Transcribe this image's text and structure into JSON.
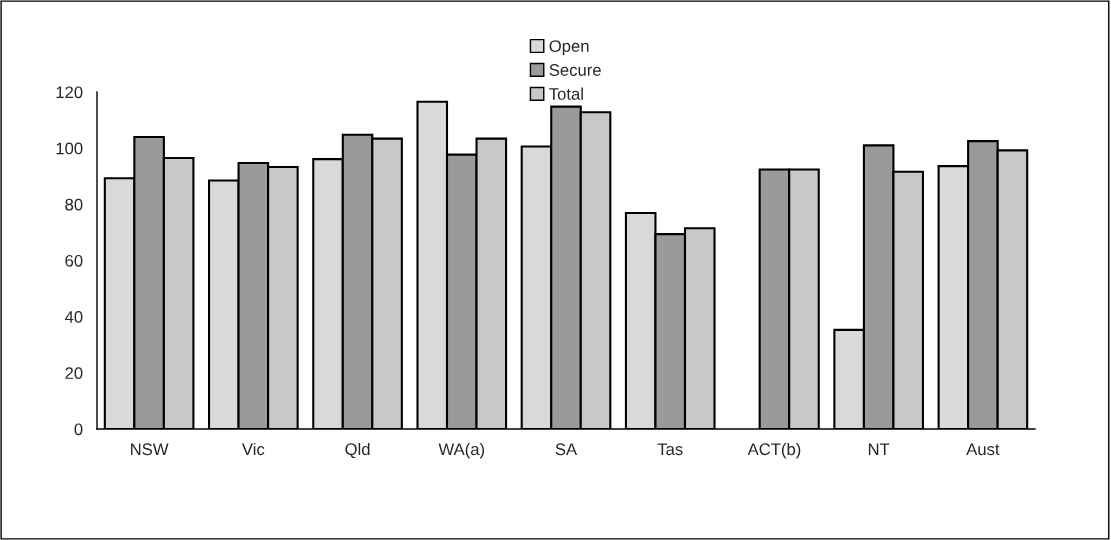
{
  "chart_data": {
    "type": "bar",
    "categories": [
      "NSW",
      "Vic",
      "Qld",
      "WA(a)",
      "SA",
      "Tas",
      "ACT(b)",
      "NT",
      "Aust"
    ],
    "series": [
      {
        "name": "Open",
        "color": "#d9d9d9",
        "values": [
          89.3,
          88.5,
          96.1,
          116.5,
          100.6,
          76.9,
          null,
          35.3,
          93.6
        ]
      },
      {
        "name": "Secure",
        "color": "#9a9a9a",
        "values": [
          104,
          94.7,
          104.8,
          97.7,
          114.8,
          69.4,
          92.4,
          101,
          102.5
        ]
      },
      {
        "name": "Total",
        "color": "#c8c8c8",
        "values": [
          96.5,
          93.3,
          103.4,
          103.4,
          112.8,
          71.5,
          92.4,
          91.6,
          99.2
        ]
      }
    ],
    "ylim": [
      0,
      120
    ],
    "yticks": [
      0,
      20,
      40,
      60,
      80,
      100,
      120
    ],
    "grid": false,
    "legend": "top"
  }
}
